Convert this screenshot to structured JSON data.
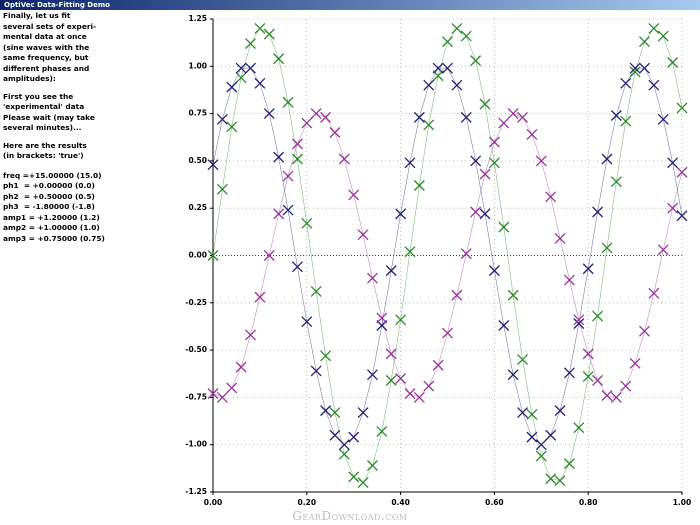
{
  "window": {
    "title": "OptiVec Data-Fitting Demo"
  },
  "panel": {
    "paragraphs": [
      [
        "Finally, let us fit",
        "several sets of experi-",
        "mental data at once",
        "(sine waves with the",
        "same frequency, but",
        "different phases and",
        "amplitudes):"
      ],
      [
        "First you see the",
        "'experimental' data",
        "Please wait (may take",
        "several minutes)..."
      ],
      [
        "Here are the results",
        "(in brackets: 'true')"
      ],
      [
        "freq =+15.00000 (15.0)",
        "ph1  = +0.00000 (0.0)",
        "ph2  = +0.50000 (0.5)",
        "ph3  = -1.80000 (-1.8)",
        "amp1 = +1.20000 (1.2)",
        "amp2 = +1.00000 (1.0)",
        "amp3 = +0.75000 (0.75)"
      ]
    ]
  },
  "chart_data": {
    "type": "scatter",
    "x": [
      0,
      0.02,
      0.04,
      0.06,
      0.08,
      0.1,
      0.12,
      0.14,
      0.16,
      0.18,
      0.2,
      0.22,
      0.24,
      0.26,
      0.28,
      0.3,
      0.32,
      0.34,
      0.36,
      0.38,
      0.4,
      0.42,
      0.44,
      0.46,
      0.48,
      0.5,
      0.52,
      0.54,
      0.56,
      0.58,
      0.6,
      0.62,
      0.64,
      0.66,
      0.68,
      0.7,
      0.72,
      0.74,
      0.76,
      0.78,
      0.8,
      0.82,
      0.84,
      0.86,
      0.88,
      0.9,
      0.92,
      0.94,
      0.96,
      0.98,
      1
    ],
    "series": [
      {
        "color": "#2a8a2a",
        "values": [
          0,
          0.35,
          0.68,
          0.94,
          1.12,
          1.2,
          1.17,
          1.04,
          0.81,
          0.51,
          0.17,
          -0.19,
          -0.53,
          -0.83,
          -1.05,
          -1.17,
          -1.2,
          -1.11,
          -0.93,
          -0.66,
          -0.34,
          0.02,
          0.37,
          0.69,
          0.95,
          1.13,
          1.2,
          1.16,
          1.03,
          0.8,
          0.49,
          0.15,
          -0.21,
          -0.55,
          -0.84,
          -1.06,
          -1.18,
          -1.19,
          -1.1,
          -0.91,
          -0.64,
          -0.32,
          0.04,
          0.39,
          0.71,
          0.97,
          1.13,
          1.2,
          1.16,
          1.02,
          0.78
        ]
      },
      {
        "color": "#222272",
        "values": [
          0.48,
          0.72,
          0.89,
          0.99,
          0.99,
          0.91,
          0.75,
          0.52,
          0.24,
          -0.06,
          -0.35,
          -0.61,
          -0.82,
          -0.95,
          -1,
          -0.96,
          -0.83,
          -0.63,
          -0.37,
          -0.08,
          0.22,
          0.49,
          0.73,
          0.9,
          0.99,
          0.99,
          0.9,
          0.73,
          0.5,
          0.22,
          -0.08,
          -0.37,
          -0.63,
          -0.83,
          -0.96,
          -1,
          -0.95,
          -0.82,
          -0.62,
          -0.36,
          -0.07,
          0.23,
          0.51,
          0.74,
          0.91,
          0.99,
          0.99,
          0.9,
          0.72,
          0.49,
          0.21
        ]
      },
      {
        "color": "#993399",
        "values": [
          -0.73,
          -0.75,
          -0.7,
          -0.59,
          -0.42,
          -0.22,
          0,
          0.22,
          0.42,
          0.59,
          0.7,
          0.75,
          0.73,
          0.65,
          0.51,
          0.32,
          0.11,
          -0.12,
          -0.33,
          -0.52,
          -0.65,
          -0.73,
          -0.75,
          -0.69,
          -0.58,
          -0.41,
          -0.21,
          0.01,
          0.23,
          0.43,
          0.6,
          0.7,
          0.75,
          0.73,
          0.64,
          0.5,
          0.31,
          0.09,
          -0.13,
          -0.34,
          -0.52,
          -0.66,
          -0.74,
          -0.75,
          -0.69,
          -0.57,
          -0.4,
          -0.2,
          0.03,
          0.25,
          0.44
        ]
      }
    ],
    "xlim": [
      0,
      1
    ],
    "xticks": [
      {
        "value": 0,
        "label": "0.00"
      },
      {
        "value": 0.2,
        "label": "0.20"
      },
      {
        "value": 0.4,
        "label": "0.40"
      },
      {
        "value": 0.6,
        "label": "0.60"
      },
      {
        "value": 0.8,
        "label": "0.80"
      },
      {
        "value": 1,
        "label": "1.00"
      }
    ],
    "ylim": [
      -1.25,
      1.25
    ],
    "yticks": [
      1.25,
      {
        "value": 1,
        "label": "1.00"
      },
      0.75,
      {
        "value": 0.5,
        "label": "0.50"
      },
      0.25,
      {
        "value": 0,
        "label": "0.00"
      },
      -0.25,
      {
        "value": -0.5,
        "label": "-0.50"
      },
      -0.75,
      {
        "value": -1,
        "label": "-1.00"
      },
      -1.25
    ],
    "grid": true
  },
  "watermark": "GearDownload.com"
}
